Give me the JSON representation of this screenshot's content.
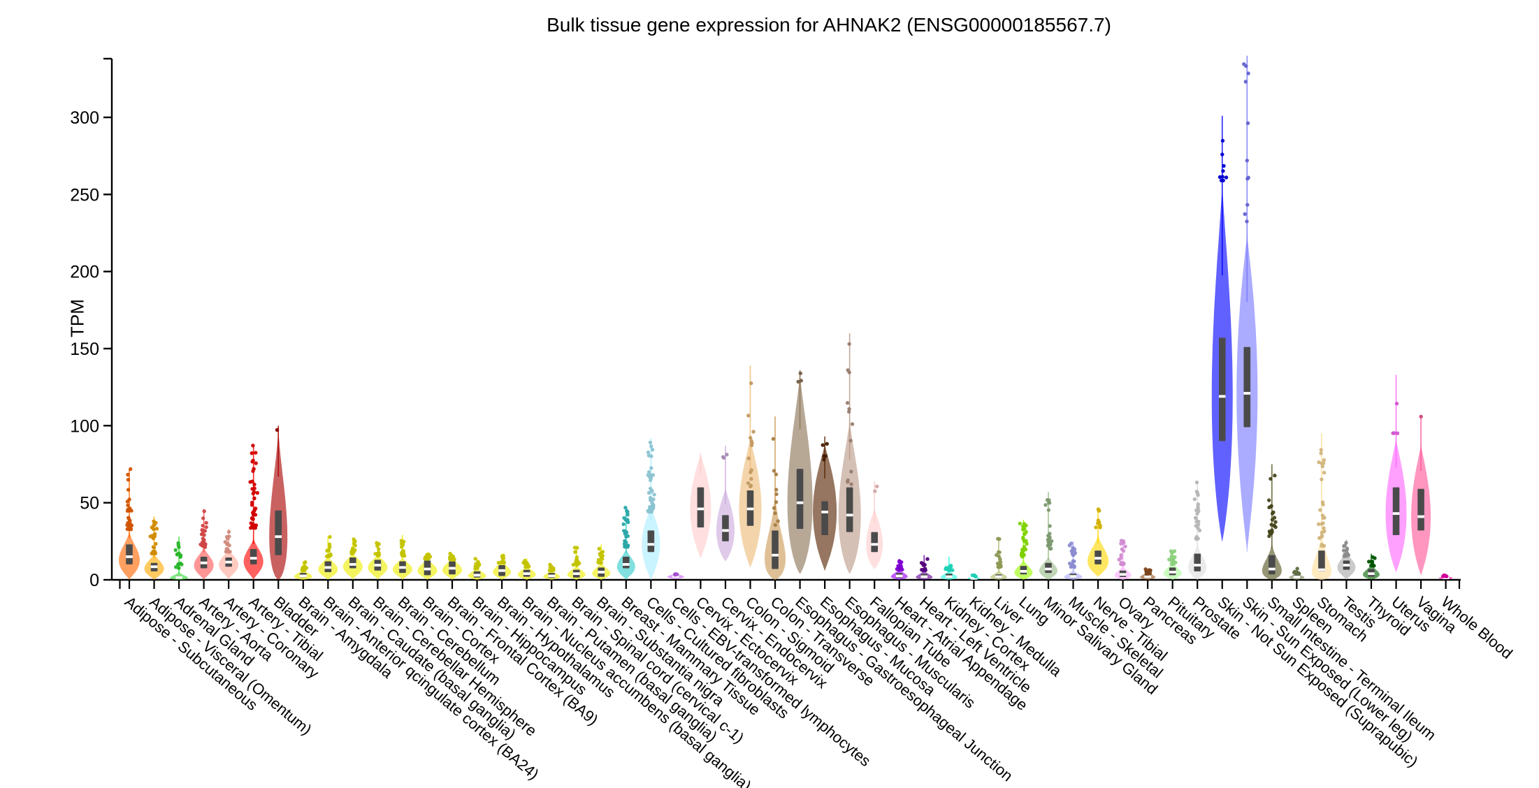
{
  "title": "Bulk tissue gene expression for AHNAK2 (ENSG00000185567.7)",
  "chart_data": {
    "type": "violin",
    "title": "Bulk tissue gene expression for AHNAK2 (ENSG00000185567.7)",
    "ylabel": "TPM",
    "yticks": [
      0,
      50,
      100,
      150,
      200,
      250,
      300
    ],
    "ylim": [
      0,
      338
    ],
    "grid": false,
    "x_label_rotation_deg": 40,
    "box_color": "#4a4a4a",
    "median_color": "#ffffff",
    "axis_color": "#000000",
    "tissues": [
      {
        "label": "Adipose - Subcutaneous",
        "color": "#FF6600",
        "q1": 10,
        "med": 15,
        "q3": 23,
        "vmin": 0,
        "vmax": 33,
        "pmax": 72,
        "n": 38,
        "hw": 15
      },
      {
        "label": "Adipose - Visceral (Omentum)",
        "color": "#FFAA00",
        "q1": 5.5,
        "med": 8.5,
        "q3": 11,
        "vmin": 0,
        "vmax": 18,
        "pmax": 41,
        "n": 24,
        "hw": 14
      },
      {
        "label": "Adrenal Gland",
        "color": "#33DD33",
        "q1": 0.8,
        "med": 1.5,
        "q3": 2.5,
        "vmin": 0,
        "vmax": 6,
        "pmax": 28,
        "n": 18,
        "hw": 13
      },
      {
        "label": "Artery - Aorta",
        "color": "#FF5555",
        "q1": 7.5,
        "med": 11,
        "q3": 15,
        "vmin": 0,
        "vmax": 22,
        "pmax": 46,
        "n": 26,
        "hw": 14
      },
      {
        "label": "Artery - Coronary",
        "color": "#FFAA99",
        "q1": 8.5,
        "med": 11.5,
        "q3": 14.5,
        "vmin": 0,
        "vmax": 20,
        "pmax": 33,
        "n": 16,
        "hw": 14
      },
      {
        "label": "Artery - Tibial",
        "color": "#FF0000",
        "q1": 10,
        "med": 14,
        "q3": 20,
        "vmin": 0,
        "vmax": 28,
        "pmax": 88,
        "n": 40,
        "hw": 14
      },
      {
        "label": "Bladder",
        "color": "#AA0000",
        "q1": 16,
        "med": 28,
        "q3": 45,
        "vmin": 0,
        "vmax": 100,
        "pmin": 97,
        "pmax": 100,
        "n": 1,
        "hw": 13
      },
      {
        "label": "Brain - Amygdala",
        "color": "#EEEE00",
        "q1": 1.5,
        "med": 2.5,
        "q3": 4.5,
        "vmin": 0,
        "vmax": 8,
        "pmax": 12,
        "n": 12,
        "hw": 13
      },
      {
        "label": "Brain - Anterior qcingulate cortex (BA24)",
        "color": "#EEEE00",
        "q1": 5,
        "med": 8,
        "q3": 12,
        "vmin": 0,
        "vmax": 16,
        "pmax": 28,
        "n": 14,
        "hw": 14
      },
      {
        "label": "Brain - Caudate (basal ganglia)",
        "color": "#EEEE00",
        "q1": 7.5,
        "med": 10,
        "q3": 14.5,
        "vmin": 0,
        "vmax": 18,
        "pmax": 27,
        "n": 16,
        "hw": 14
      },
      {
        "label": "Brain - Cerebellar Hemisphere",
        "color": "#EEEE00",
        "q1": 6,
        "med": 9.5,
        "q3": 13,
        "vmin": 0,
        "vmax": 17,
        "pmax": 24,
        "n": 12,
        "hw": 14
      },
      {
        "label": "Brain - Cerebellum",
        "color": "#EEEE00",
        "q1": 4.5,
        "med": 8,
        "q3": 12,
        "vmin": 0,
        "vmax": 15,
        "pmax": 29,
        "n": 14,
        "hw": 14
      },
      {
        "label": "Brain - Cortex",
        "color": "#EEEE00",
        "q1": 3,
        "med": 7,
        "q3": 12.5,
        "vmin": 0,
        "vmax": 15,
        "pmax": 18,
        "n": 12,
        "hw": 14
      },
      {
        "label": "Brain - Frontal Cortex (BA9)",
        "color": "#EEEE00",
        "q1": 3.5,
        "med": 7.5,
        "q3": 12,
        "vmin": 0,
        "vmax": 15,
        "pmax": 17,
        "n": 10,
        "hw": 14
      },
      {
        "label": "Brain - Hippocampus",
        "color": "#EEEE00",
        "q1": 1.5,
        "med": 3,
        "q3": 5.5,
        "vmin": 0,
        "vmax": 9,
        "pmax": 14,
        "n": 12,
        "hw": 13
      },
      {
        "label": "Brain - Hypothalamus",
        "color": "#EEEE00",
        "q1": 2.5,
        "med": 6,
        "q3": 9.5,
        "vmin": 0,
        "vmax": 13,
        "pmax": 17,
        "n": 12,
        "hw": 13
      },
      {
        "label": "Brain - Nucleus accumbens (basal ganglia)",
        "color": "#EEEE00",
        "q1": 2,
        "med": 4,
        "q3": 6.5,
        "vmin": 0,
        "vmax": 10,
        "pmax": 14,
        "n": 12,
        "hw": 13
      },
      {
        "label": "Brain - Putamen (basal ganglia)",
        "color": "#EEEE00",
        "q1": 1.2,
        "med": 2.5,
        "q3": 4.5,
        "vmin": 0,
        "vmax": 7,
        "pmax": 10,
        "n": 10,
        "hw": 12
      },
      {
        "label": "Brain - Spinal cord (cervical c-1)",
        "color": "#EEEE00",
        "q1": 1.5,
        "med": 4,
        "q3": 6.5,
        "vmin": 0,
        "vmax": 10,
        "pmax": 22,
        "n": 14,
        "hw": 13
      },
      {
        "label": "Brain - Substantia nigra",
        "color": "#EEEE00",
        "q1": 2,
        "med": 5,
        "q3": 8,
        "vmin": 0,
        "vmax": 12,
        "pmax": 23,
        "n": 14,
        "hw": 13
      },
      {
        "label": "Breast - Mammary Tissue",
        "color": "#33CCCC",
        "q1": 7.5,
        "med": 10,
        "q3": 15,
        "vmin": 0,
        "vmax": 21,
        "pmax": 47,
        "n": 30,
        "hw": 13
      },
      {
        "label": "Cells - Cultured fibroblasts",
        "color": "#AAEEFF",
        "q1": 18,
        "med": 23,
        "q3": 32,
        "vmin": 0,
        "vmax": 47,
        "pmax": 92,
        "n": 40,
        "hw": 13
      },
      {
        "label": "Cells - EBV-transformed lymphocytes",
        "color": "#CC66FF",
        "q1": 1.5,
        "med": 2.2,
        "q3": 3.2,
        "vmin": 0.4,
        "vmax": 4.5,
        "pmax": 4,
        "n": 6,
        "hw": 12
      },
      {
        "label": "Cervix - Ectocervix",
        "color": "#FFCCCC",
        "q1": 34,
        "med": 46,
        "q3": 60,
        "vmin": 14,
        "vmax": 82,
        "pmax": 82,
        "n": 0,
        "hw": 15
      },
      {
        "label": "Cervix - Endocervix",
        "color": "#CCAADD",
        "q1": 25,
        "med": 32,
        "q3": 42,
        "vmin": 12,
        "vmax": 60,
        "pmin": 79,
        "pmax": 87,
        "n": 3,
        "hw": 13
      },
      {
        "label": "Colon - Sigmoid",
        "color": "#EEBB77",
        "q1": 35,
        "med": 46,
        "q3": 58,
        "vmin": 8,
        "vmax": 92,
        "pmin": 60,
        "pmax": 139,
        "n": 14,
        "hw": 16
      },
      {
        "label": "Colon - Transverse",
        "color": "#CC9955",
        "q1": 7,
        "med": 16,
        "q3": 32,
        "vmin": 0,
        "vmax": 64,
        "pmin": 34,
        "pmax": 106,
        "n": 10,
        "hw": 15
      },
      {
        "label": "Esophagus - Gastroesophageal Junction",
        "color": "#8B7355",
        "q1": 33,
        "med": 50,
        "q3": 72,
        "vmin": 4,
        "vmax": 136,
        "pmin": 128,
        "pmax": 136,
        "n": 3,
        "hw": 18
      },
      {
        "label": "Esophagus - Mucosa",
        "color": "#552200",
        "q1": 29,
        "med": 44,
        "q3": 51,
        "vmin": 6,
        "vmax": 88,
        "pmin": 78,
        "pmax": 93,
        "n": 6,
        "hw": 17
      },
      {
        "label": "Esophagus - Muscularis",
        "color": "#BB9988",
        "q1": 31,
        "med": 42,
        "q3": 60,
        "vmin": 4,
        "vmax": 104,
        "pmin": 62,
        "pmax": 160,
        "n": 12,
        "hw": 16
      },
      {
        "label": "Fallopian Tube",
        "color": "#FFCCCC",
        "q1": 18,
        "med": 23,
        "q3": 31,
        "vmin": 7,
        "vmax": 47,
        "pmin": 56,
        "pmax": 64,
        "n": 2,
        "hw": 12
      },
      {
        "label": "Heart - Atrial Appendage",
        "color": "#9900FF",
        "q1": 1.2,
        "med": 2.5,
        "q3": 4.5,
        "vmin": 0,
        "vmax": 8,
        "pmax": 13,
        "n": 14,
        "hw": 12
      },
      {
        "label": "Heart - Left Ventricle",
        "color": "#660099",
        "q1": 1,
        "med": 2,
        "q3": 3.8,
        "vmin": 0,
        "vmax": 7,
        "pmax": 16,
        "n": 14,
        "hw": 12
      },
      {
        "label": "Kidney - Cortex",
        "color": "#22FFDD",
        "q1": 1,
        "med": 2,
        "q3": 4,
        "vmin": 0,
        "vmax": 7,
        "pmax": 15,
        "n": 12,
        "hw": 12
      },
      {
        "label": "Kidney - Medulla",
        "color": "#22FFDD",
        "q1": 0.6,
        "med": 1,
        "q3": 1.6,
        "vmin": 0,
        "vmax": 3,
        "pmax": 3,
        "n": 4,
        "hw": 9
      },
      {
        "label": "Liver",
        "color": "#AABB66",
        "q1": 1,
        "med": 2,
        "q3": 3.5,
        "vmin": 0,
        "vmax": 7,
        "pmax": 27,
        "n": 16,
        "hw": 12
      },
      {
        "label": "Lung",
        "color": "#99FF00",
        "q1": 3.5,
        "med": 5.5,
        "q3": 9,
        "vmin": 0,
        "vmax": 14,
        "pmax": 39,
        "n": 26,
        "hw": 13
      },
      {
        "label": "Minor Salivary Gland",
        "color": "#99BB88",
        "q1": 4.5,
        "med": 7,
        "q3": 11,
        "vmin": 0,
        "vmax": 16,
        "pmax": 57,
        "n": 22,
        "hw": 13
      },
      {
        "label": "Muscle - Skeletal",
        "color": "#AAAAFF",
        "q1": 1.2,
        "med": 2.2,
        "q3": 4,
        "vmin": 0,
        "vmax": 7,
        "pmax": 25,
        "n": 26,
        "hw": 13
      },
      {
        "label": "Nerve - Tibial",
        "color": "#FFD700",
        "q1": 10,
        "med": 14,
        "q3": 19,
        "vmin": 2,
        "vmax": 31,
        "pmin": 34,
        "pmax": 46,
        "n": 10,
        "hw": 15
      },
      {
        "label": "Ovary",
        "color": "#FFAAFF",
        "q1": 1.8,
        "med": 3.5,
        "q3": 6,
        "vmin": 0,
        "vmax": 10,
        "pmax": 26,
        "n": 16,
        "hw": 12
      },
      {
        "label": "Pancreas",
        "color": "#995522",
        "q1": 1,
        "med": 2,
        "q3": 3.2,
        "vmin": 0,
        "vmax": 6,
        "pmax": 7,
        "n": 14,
        "hw": 11
      },
      {
        "label": "Pituitary",
        "color": "#AAFF99",
        "q1": 3,
        "med": 5,
        "q3": 8,
        "vmin": 0,
        "vmax": 12,
        "pmax": 19,
        "n": 16,
        "hw": 13
      },
      {
        "label": "Prostate",
        "color": "#DDDDDD",
        "q1": 5.5,
        "med": 9.5,
        "q3": 17,
        "vmin": 0,
        "vmax": 25,
        "pmax": 64,
        "n": 24,
        "hw": 13
      },
      {
        "label": "Skin - Not Sun Exposed (Suprapubic)",
        "color": "#0000FF",
        "q1": 90,
        "med": 119,
        "q3": 157,
        "vmin": 25,
        "vmax": 258,
        "pmin": 259,
        "pmax": 301,
        "n": 9,
        "hw": 15
      },
      {
        "label": "Skin - Sun Exposed (Lower leg)",
        "color": "#7777FF",
        "q1": 99,
        "med": 121,
        "q3": 151,
        "vmin": 18,
        "vmax": 224,
        "pmin": 230,
        "pmax": 340,
        "n": 11,
        "hw": 15
      },
      {
        "label": "Small Intestine - Terminal Ileum",
        "color": "#555522",
        "q1": 3.5,
        "med": 7,
        "q3": 16,
        "vmin": 0,
        "vmax": 27,
        "pmax": 75,
        "n": 22,
        "hw": 14
      },
      {
        "label": "Spleen",
        "color": "#778855",
        "q1": 1,
        "med": 1.8,
        "q3": 3,
        "vmin": 0,
        "vmax": 5,
        "pmax": 8,
        "n": 10,
        "hw": 11
      },
      {
        "label": "Stomach",
        "color": "#FFDD99",
        "q1": 5.5,
        "med": 6.5,
        "q3": 19,
        "vmin": 0,
        "vmax": 38,
        "pmin": 22,
        "pmax": 95,
        "n": 30,
        "hw": 14
      },
      {
        "label": "Testis",
        "color": "#AAAAAA",
        "q1": 6.5,
        "med": 9.5,
        "q3": 12.5,
        "vmin": 0,
        "vmax": 19,
        "pmax": 26,
        "n": 12,
        "hw": 13
      },
      {
        "label": "Thyroid",
        "color": "#006600",
        "q1": 2,
        "med": 4,
        "q3": 7,
        "vmin": 0,
        "vmax": 11,
        "pmax": 17,
        "n": 10,
        "hw": 12
      },
      {
        "label": "Uterus",
        "color": "#FF66FF",
        "q1": 29,
        "med": 43,
        "q3": 60,
        "vmin": 5,
        "vmax": 92,
        "pmin": 95,
        "pmax": 133,
        "n": 4,
        "hw": 15
      },
      {
        "label": "Vagina",
        "color": "#FF5599",
        "q1": 32,
        "med": 41,
        "q3": 59,
        "vmin": 3,
        "vmax": 88,
        "pmin": 104,
        "pmax": 106,
        "n": 1,
        "hw": 14
      },
      {
        "label": "Whole Blood",
        "color": "#FF00BB",
        "q1": 0.8,
        "med": 1.3,
        "q3": 2,
        "vmin": 0.3,
        "vmax": 3,
        "pmax": 3,
        "n": 6,
        "hw": 10
      }
    ]
  }
}
